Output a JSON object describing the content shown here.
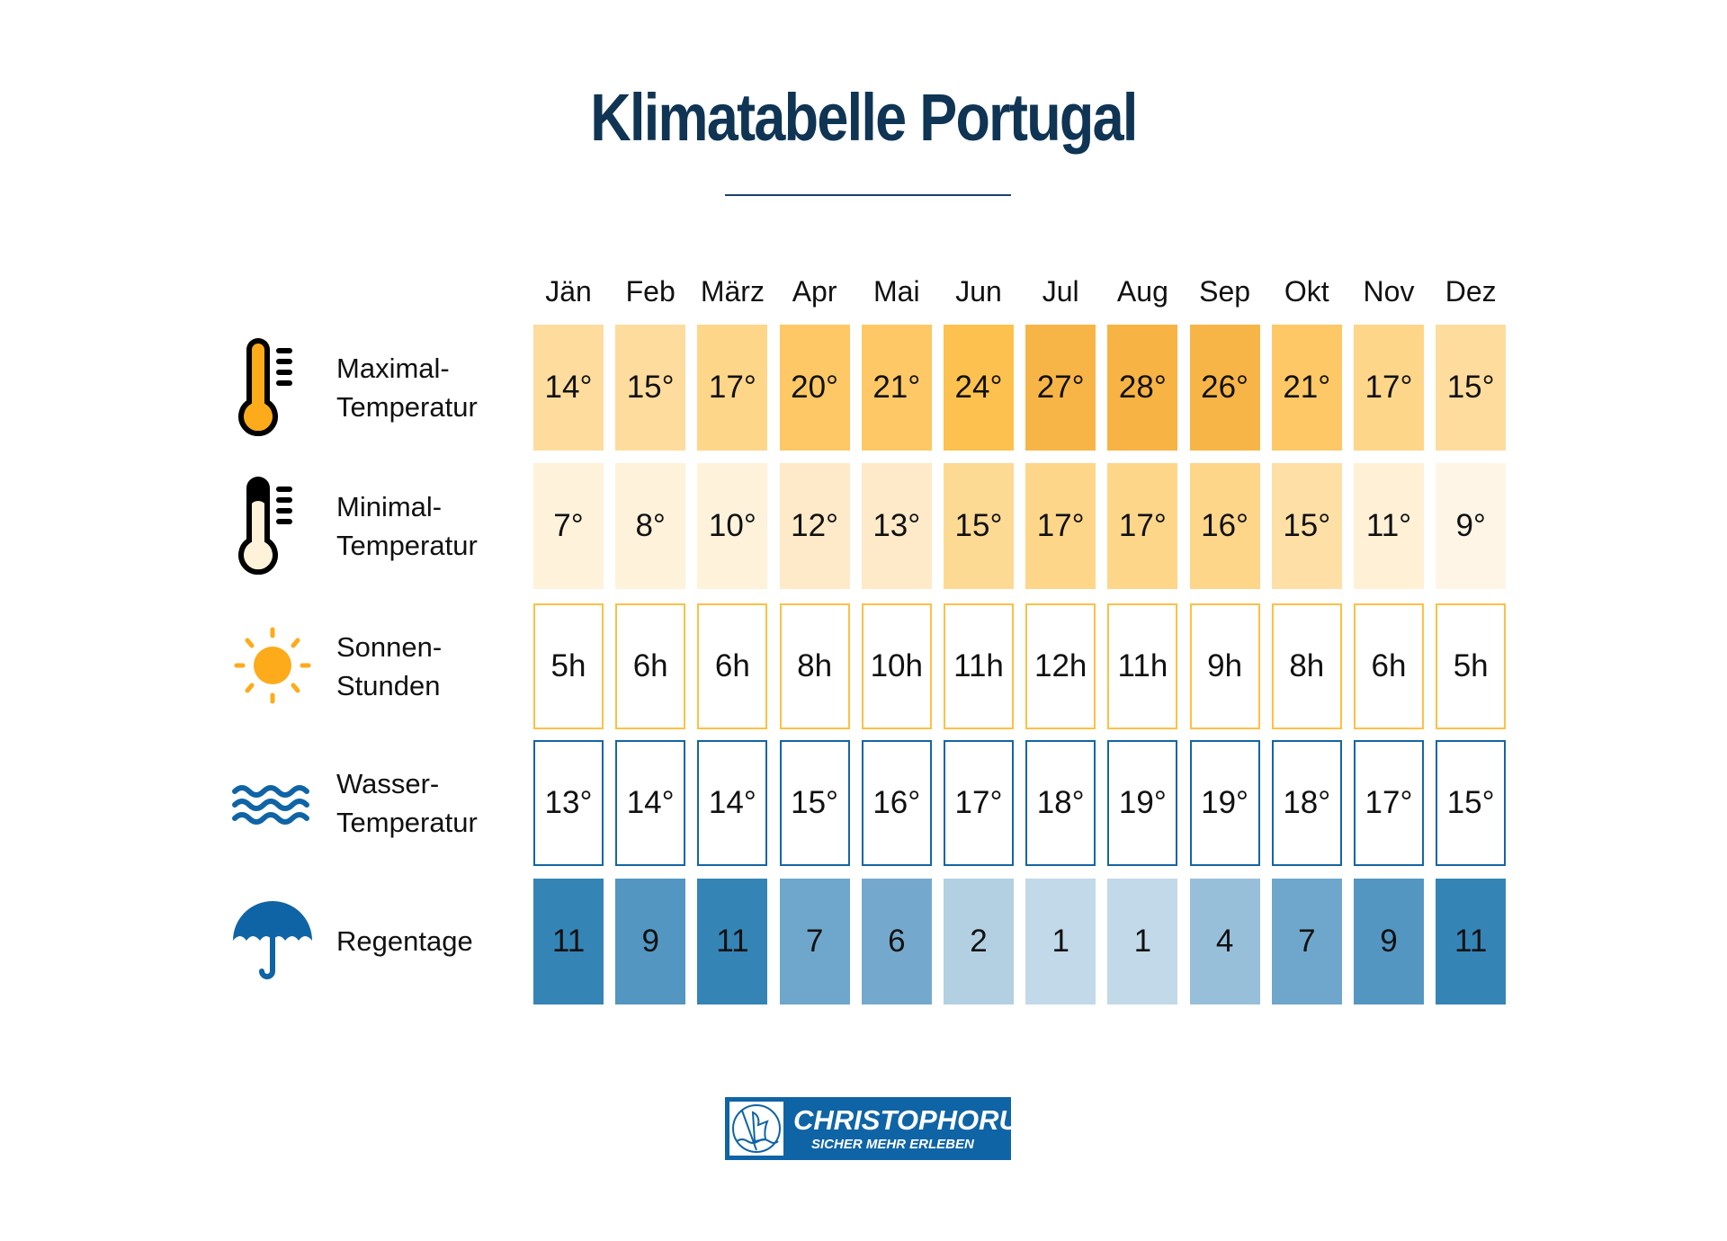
{
  "title": "Klimatabelle Portugal",
  "months": [
    "Jän",
    "Feb",
    "März",
    "Apr",
    "Mai",
    "Jun",
    "Jul",
    "Aug",
    "Sep",
    "Okt",
    "Nov",
    "Dez"
  ],
  "rows": [
    {
      "label1": "Maximal-",
      "label2": "Temperatur",
      "icon": "thermometer-high-icon",
      "style": "fill",
      "values": [
        "14°",
        "15°",
        "17°",
        "20°",
        "21°",
        "24°",
        "27°",
        "28°",
        "26°",
        "21°",
        "17°",
        "15°"
      ],
      "colors": [
        "#fedc9d",
        "#fedc9d",
        "#fdd68a",
        "#fdc865",
        "#fdc865",
        "#fdc14f",
        "#f8b547",
        "#f7b343",
        "#f8b547",
        "#fdc865",
        "#fdd68a",
        "#fedc9d"
      ]
    },
    {
      "label1": "Minimal-",
      "label2": "Temperatur",
      "icon": "thermometer-low-icon",
      "style": "fill",
      "values": [
        "7°",
        "8°",
        "10°",
        "12°",
        "13°",
        "15°",
        "17°",
        "17°",
        "16°",
        "15°",
        "11°",
        "9°"
      ],
      "colors": [
        "#fff2db",
        "#fff2db",
        "#fff2db",
        "#feeac8",
        "#feeac8",
        "#fdda94",
        "#fdd68a",
        "#fdd68a",
        "#fdd68a",
        "#fee0a6",
        "#fff0d6",
        "#fff5e7"
      ]
    },
    {
      "label1": "Sonnen-",
      "label2": "Stunden",
      "icon": "sun-icon",
      "style": "border",
      "border": "#fdc045",
      "values": [
        "5h",
        "6h",
        "6h",
        "8h",
        "10h",
        "11h",
        "12h",
        "11h",
        "9h",
        "8h",
        "6h",
        "5h"
      ]
    },
    {
      "label1": "Wasser-",
      "label2": "Temperatur",
      "icon": "waves-icon",
      "style": "border",
      "border": "#1565a3",
      "values": [
        "13°",
        "14°",
        "14°",
        "15°",
        "16°",
        "17°",
        "18°",
        "19°",
        "19°",
        "18°",
        "17°",
        "15°"
      ]
    },
    {
      "label1": "Regentage",
      "label2": "",
      "icon": "umbrella-icon",
      "style": "fill",
      "values": [
        "11",
        "9",
        "11",
        "7",
        "6",
        "2",
        "1",
        "1",
        "4",
        "7",
        "9",
        "11"
      ],
      "colors": [
        "#3584b6",
        "#5396c2",
        "#3584b6",
        "#6fa6cb",
        "#74a9cd",
        "#b2d0e2",
        "#c1d9e8",
        "#c1d9e8",
        "#98bfda",
        "#6fa6cb",
        "#5396c2",
        "#3584b6"
      ]
    }
  ],
  "logo": {
    "brand": "CHRISTOPHORUS",
    "tagline": "SICHER MEHR ERLEBEN"
  },
  "colors": {
    "title": "#0f3454",
    "accent_orange": "#fdab1b",
    "accent_blue": "#0f64a6"
  }
}
